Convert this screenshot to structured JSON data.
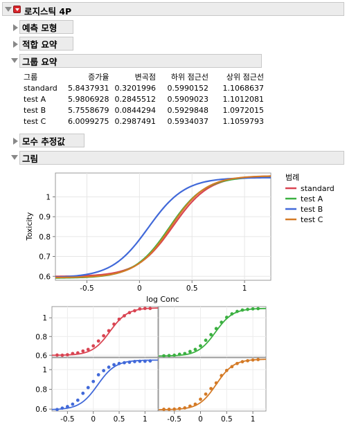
{
  "report": {
    "title": "로지스틱 4P",
    "sections": {
      "prediction": "예측 모형",
      "fit_summary": "적합 요약",
      "group_summary": "그룹 요약",
      "param_estimates": "모수 추정값",
      "plot": "그림"
    }
  },
  "group_table": {
    "headers": [
      "그룹",
      "증가율",
      "변곡점",
      "하위 점근선",
      "상위 점근선"
    ],
    "rows": [
      [
        "standard",
        "5.8437931",
        "0.3201996",
        "0.5990152",
        "1.1068637"
      ],
      [
        "test A",
        "5.9806928",
        "0.2845512",
        "0.5909023",
        "1.1012081"
      ],
      [
        "test B",
        "5.7558679",
        "0.0844294",
        "0.5929848",
        "1.0972015"
      ],
      [
        "test C",
        "6.0099275",
        "0.2987491",
        "0.5934037",
        "1.1059793"
      ]
    ]
  },
  "legend": {
    "title": "범례",
    "items": [
      "standard",
      "test A",
      "test B",
      "test C"
    ]
  },
  "colors": {
    "standard": "#d94452",
    "test A": "#3bb041",
    "test B": "#4169d9",
    "test C": "#d47a26"
  },
  "chart_data": [
    {
      "type": "line",
      "xlabel": "log Conc",
      "ylabel": "Toxicity",
      "xlim": [
        -0.8,
        1.25
      ],
      "ylim": [
        0.58,
        1.12
      ],
      "xticks": [
        "-0.5",
        "0",
        "0.5",
        "1"
      ],
      "yticks": [
        "0.6",
        "0.7",
        "0.8",
        "0.9",
        "1"
      ],
      "series": [
        {
          "name": "standard",
          "growth": 5.8437931,
          "inflection": 0.3201996,
          "lower": 0.5990152,
          "upper": 1.1068637
        },
        {
          "name": "test A",
          "growth": 5.9806928,
          "inflection": 0.2845512,
          "lower": 0.5909023,
          "upper": 1.1012081
        },
        {
          "name": "test B",
          "growth": 5.7558679,
          "inflection": 0.0844294,
          "lower": 0.5929848,
          "upper": 1.0972015
        },
        {
          "name": "test C",
          "growth": 6.0099275,
          "inflection": 0.2987491,
          "lower": 0.5934037,
          "upper": 1.1059793
        }
      ]
    },
    {
      "type": "scatter",
      "xlim": [
        -0.8,
        1.25
      ],
      "ylim": [
        0.58,
        1.12
      ],
      "xticks": [
        "-0.5",
        "0",
        "0.5",
        "1"
      ],
      "yticks": [
        "0.6",
        "0.8",
        "1"
      ],
      "x": [
        -0.7,
        -0.6,
        -0.5,
        -0.4,
        -0.3,
        -0.2,
        -0.1,
        0.0,
        0.1,
        0.2,
        0.3,
        0.4,
        0.5,
        0.6,
        0.7,
        0.8,
        0.9,
        1.0,
        1.1
      ],
      "panels": [
        {
          "name": "standard",
          "y": [
            0.602,
            0.6,
            0.605,
            0.618,
            0.625,
            0.645,
            0.662,
            0.7,
            0.752,
            0.808,
            0.862,
            0.932,
            0.985,
            1.022,
            1.055,
            1.075,
            1.095,
            1.1,
            1.1
          ]
        },
        {
          "name": "test A",
          "y": [
            0.594,
            0.596,
            0.6,
            0.61,
            0.618,
            0.64,
            0.662,
            0.7,
            0.76,
            0.82,
            0.885,
            0.952,
            1.005,
            1.042,
            1.068,
            1.083,
            1.09,
            1.096,
            1.098
          ]
        },
        {
          "name": "test B",
          "y": [
            0.596,
            0.61,
            0.625,
            0.65,
            0.69,
            0.76,
            0.818,
            0.88,
            0.948,
            0.99,
            1.025,
            1.05,
            1.062,
            1.07,
            1.075,
            1.082,
            1.085,
            1.085,
            1.088
          ]
        },
        {
          "name": "test C",
          "y": [
            0.598,
            0.598,
            0.6,
            0.605,
            0.612,
            0.63,
            0.65,
            0.7,
            0.752,
            0.808,
            0.865,
            0.94,
            0.992,
            1.03,
            1.062,
            1.08,
            1.09,
            1.098,
            1.102
          ]
        }
      ]
    }
  ]
}
